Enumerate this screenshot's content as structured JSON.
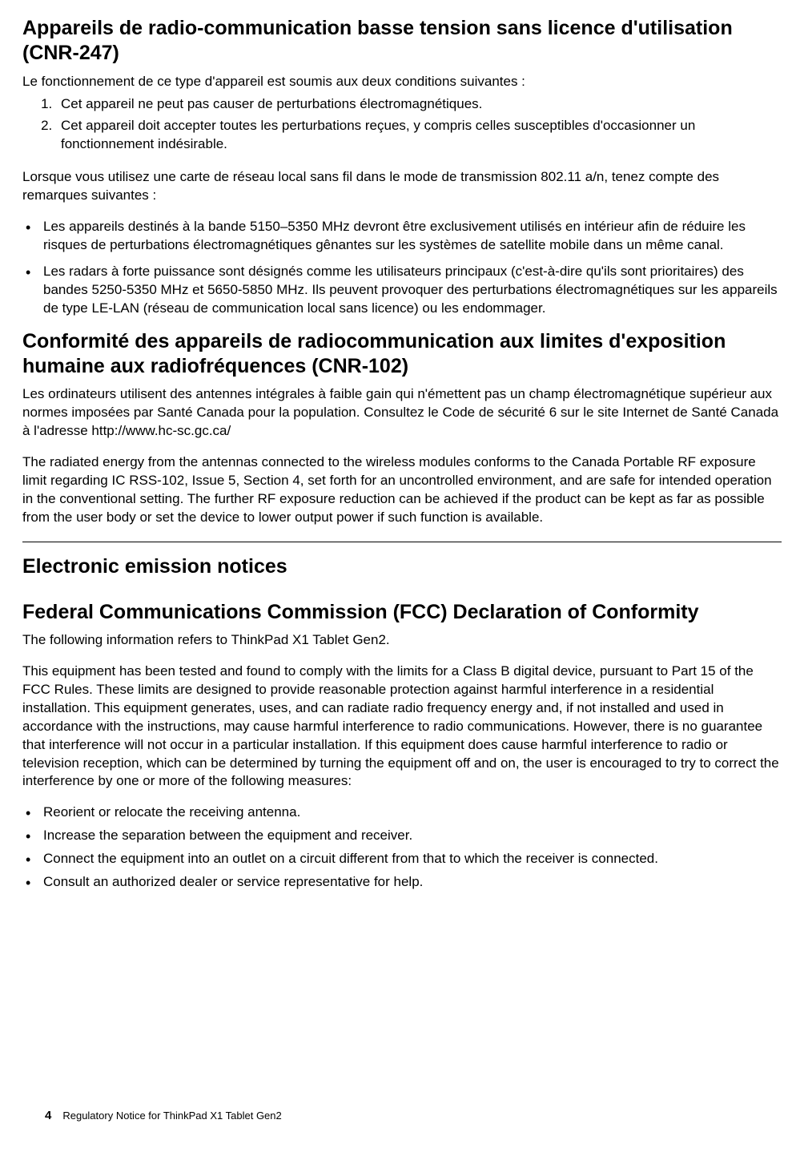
{
  "section1": {
    "heading": "Appareils de radio-communication basse tension sans licence d'utilisation (CNR-247)",
    "intro": "Le fonctionnement de ce type d'appareil est soumis aux deux conditions suivantes :",
    "ordered": [
      "Cet appareil ne peut pas causer de perturbations électromagnétiques.",
      "Cet appareil doit accepter toutes les perturbations reçues, y compris celles susceptibles d'occasionner un fonctionnement indésirable."
    ],
    "para2": "Lorsque vous utilisez une carte de réseau local sans fil dans le mode de transmission 802.11 a/n, tenez compte des remarques suivantes :",
    "bullets": [
      "Les appareils destinés à la bande 5150–5350 MHz devront être exclusivement utilisés en intérieur afin de réduire les risques de perturbations électromagnétiques gênantes sur les systèmes de satellite mobile dans un même canal.",
      "Les radars à forte puissance sont désignés comme les utilisateurs principaux (c'est-à-dire qu'ils sont prioritaires) des bandes 5250-5350 MHz et 5650-5850 MHz. Ils peuvent provoquer des perturbations électromagnétiques sur les appareils de type LE-LAN (réseau de communication local sans licence) ou les endommager."
    ]
  },
  "section2": {
    "heading": "Conformité des appareils de radiocommunication aux limites d'exposition humaine aux radiofréquences (CNR-102)",
    "para1": "Les ordinateurs utilisent des antennes intégrales à faible gain qui n'émettent pas un champ électromagnétique supérieur aux normes imposées par Santé Canada pour la population. Consultez le Code de sécurité 6 sur le site Internet de Santé Canada à l'adresse http://www.hc-sc.gc.ca/",
    "para2": "The radiated energy from the antennas connected to the wireless modules conforms to the Canada Portable RF exposure limit regarding IC RSS-102, Issue 5, Section 4, set forth for an uncontrolled environment, and are safe for intended operation in the conventional setting. The further RF exposure reduction can be achieved if the product can be kept as far as possible from the user body or set the device to lower output power if such function is available."
  },
  "section3": {
    "heading": "Electronic emission notices"
  },
  "section4": {
    "heading": "Federal Communications Commission (FCC) Declaration of Conformity",
    "para1": "The following information refers to ThinkPad X1 Tablet Gen2.",
    "para2": "This equipment has been tested and found to comply with the limits for a Class B digital device, pursuant to Part 15 of the FCC Rules. These limits are designed to provide reasonable protection against harmful interference in a residential installation. This equipment generates, uses, and can radiate radio frequency energy and, if not installed and used in accordance with the instructions, may cause harmful interference to radio communications. However, there is no guarantee that interference will not occur in a particular installation. If this equipment does cause harmful interference to radio or television reception, which can be determined by turning the equipment off and on, the user is encouraged to try to correct the interference by one or more of the following measures:",
    "bullets": [
      "Reorient or relocate the receiving antenna.",
      "Increase the separation between the equipment and receiver.",
      "Connect the equipment into an outlet on a circuit different from that to which the receiver is connected.",
      "Consult an authorized dealer or service representative for help."
    ]
  },
  "footer": {
    "page": "4",
    "title": "Regulatory Notice for ThinkPad X1 Tablet Gen2"
  }
}
